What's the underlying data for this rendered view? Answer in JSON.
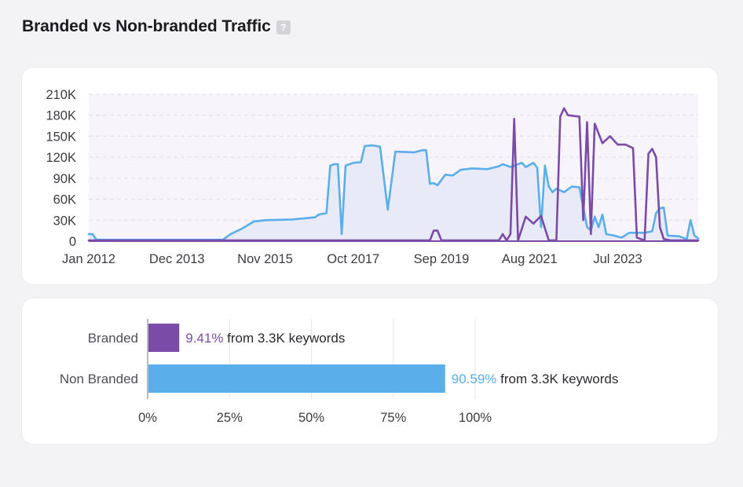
{
  "header": {
    "title": "Branded vs Non-branded Traffic",
    "help_icon": "?"
  },
  "chart_data": [
    {
      "type": "area",
      "title": "",
      "xlabel": "",
      "ylabel": "",
      "ylim": [
        0,
        210000
      ],
      "y_ticks": [
        "210K",
        "180K",
        "150K",
        "120K",
        "90K",
        "60K",
        "30K",
        "0"
      ],
      "x_ticks": [
        "Jan 2012",
        "Dec 2013",
        "Nov 2015",
        "Oct 2017",
        "Sep 2019",
        "Aug 2021",
        "Jul 2023"
      ],
      "x_range": [
        "2012-01",
        "2025-04"
      ],
      "grid": true,
      "series": [
        {
          "color": "#5aaeea",
          "fill": true,
          "points": [
            [
              "2012-01",
              10000
            ],
            [
              "2012-02",
              10000
            ],
            [
              "2012-03",
              2000
            ],
            [
              "2013-06",
              2000
            ],
            [
              "2014-12",
              2000
            ],
            [
              "2015-02",
              10000
            ],
            [
              "2015-05",
              18000
            ],
            [
              "2015-08",
              28000
            ],
            [
              "2015-11",
              30000
            ],
            [
              "2016-06",
              31000
            ],
            [
              "2016-12",
              34000
            ],
            [
              "2017-01",
              38000
            ],
            [
              "2017-03",
              40000
            ],
            [
              "2017-04",
              108000
            ],
            [
              "2017-05",
              110000
            ],
            [
              "2017-06",
              110000
            ],
            [
              "2017-07",
              10000
            ],
            [
              "2017-08",
              108000
            ],
            [
              "2017-10",
              112000
            ],
            [
              "2017-12",
              113000
            ],
            [
              "2018-01",
              136000
            ],
            [
              "2018-03",
              137000
            ],
            [
              "2018-05",
              135000
            ],
            [
              "2018-07",
              45000
            ],
            [
              "2018-09",
              128000
            ],
            [
              "2019-02",
              127000
            ],
            [
              "2019-04",
              130000
            ],
            [
              "2019-05",
              130000
            ],
            [
              "2019-06",
              82000
            ],
            [
              "2019-07",
              83000
            ],
            [
              "2019-08",
              80000
            ],
            [
              "2019-10",
              95000
            ],
            [
              "2019-12",
              94000
            ],
            [
              "2020-02",
              102000
            ],
            [
              "2020-05",
              104000
            ],
            [
              "2020-09",
              103000
            ],
            [
              "2020-12",
              107000
            ],
            [
              "2021-01",
              110000
            ],
            [
              "2021-03",
              106000
            ],
            [
              "2021-06",
              112000
            ],
            [
              "2021-07",
              106000
            ],
            [
              "2021-09",
              112000
            ],
            [
              "2021-10",
              105000
            ],
            [
              "2021-11",
              20000
            ],
            [
              "2021-12",
              108000
            ],
            [
              "2022-01",
              78000
            ],
            [
              "2022-02",
              70000
            ],
            [
              "2022-03",
              75000
            ],
            [
              "2022-05",
              70000
            ],
            [
              "2022-07",
              78000
            ],
            [
              "2022-09",
              77000
            ],
            [
              "2022-11",
              20000
            ],
            [
              "2022-12",
              15000
            ],
            [
              "2023-01",
              35000
            ],
            [
              "2023-02",
              20000
            ],
            [
              "2023-03",
              38000
            ],
            [
              "2023-04",
              10000
            ],
            [
              "2023-06",
              8000
            ],
            [
              "2023-08",
              5000
            ],
            [
              "2023-10",
              12000
            ],
            [
              "2024-02",
              12000
            ],
            [
              "2024-04",
              14000
            ],
            [
              "2024-05",
              40000
            ],
            [
              "2024-06",
              47000
            ],
            [
              "2024-07",
              48000
            ],
            [
              "2024-08",
              8000
            ],
            [
              "2024-11",
              7000
            ],
            [
              "2025-01",
              3000
            ],
            [
              "2025-02",
              30000
            ],
            [
              "2025-03",
              8000
            ],
            [
              "2025-04",
              4000
            ]
          ]
        },
        {
          "color": "#7b4ba8",
          "fill": false,
          "points": [
            [
              "2012-01",
              1000
            ],
            [
              "2015-01",
              1000
            ],
            [
              "2019-06",
              1000
            ],
            [
              "2019-07",
              15000
            ],
            [
              "2019-08",
              15000
            ],
            [
              "2019-09",
              1000
            ],
            [
              "2020-12",
              1000
            ],
            [
              "2021-01",
              10000
            ],
            [
              "2021-02",
              1000
            ],
            [
              "2021-03",
              10000
            ],
            [
              "2021-04",
              175000
            ],
            [
              "2021-05",
              1000
            ],
            [
              "2021-07",
              35000
            ],
            [
              "2021-09",
              25000
            ],
            [
              "2021-11",
              36000
            ],
            [
              "2022-01",
              1000
            ],
            [
              "2022-03",
              1000
            ],
            [
              "2022-04",
              178000
            ],
            [
              "2022-05",
              190000
            ],
            [
              "2022-06",
              180000
            ],
            [
              "2022-09",
              178000
            ],
            [
              "2022-10",
              30000
            ],
            [
              "2022-11",
              170000
            ],
            [
              "2022-12",
              10000
            ],
            [
              "2023-01",
              168000
            ],
            [
              "2023-03",
              140000
            ],
            [
              "2023-05",
              150000
            ],
            [
              "2023-07",
              138000
            ],
            [
              "2023-09",
              138000
            ],
            [
              "2023-11",
              133000
            ],
            [
              "2023-12",
              5000
            ],
            [
              "2024-01",
              3000
            ],
            [
              "2024-02",
              1000
            ],
            [
              "2024-03",
              125000
            ],
            [
              "2024-04",
              132000
            ],
            [
              "2024-05",
              120000
            ],
            [
              "2024-06",
              20000
            ],
            [
              "2024-07",
              3000
            ],
            [
              "2024-09",
              1000
            ],
            [
              "2025-04",
              1000
            ]
          ]
        }
      ]
    },
    {
      "type": "bar",
      "orientation": "horizontal",
      "categories": [
        "Branded",
        "Non Branded"
      ],
      "values": [
        9.41,
        90.59
      ],
      "value_labels": [
        "9.41%",
        "90.59%"
      ],
      "suffix_labels": [
        "from 3.3K keywords",
        "from 3.3K keywords"
      ],
      "colors": [
        "#7b4ba8",
        "#5aaeea"
      ],
      "xlim": [
        0,
        100
      ],
      "x_ticks": [
        "0%",
        "25%",
        "50%",
        "75%",
        "100%"
      ],
      "grid": true
    }
  ]
}
